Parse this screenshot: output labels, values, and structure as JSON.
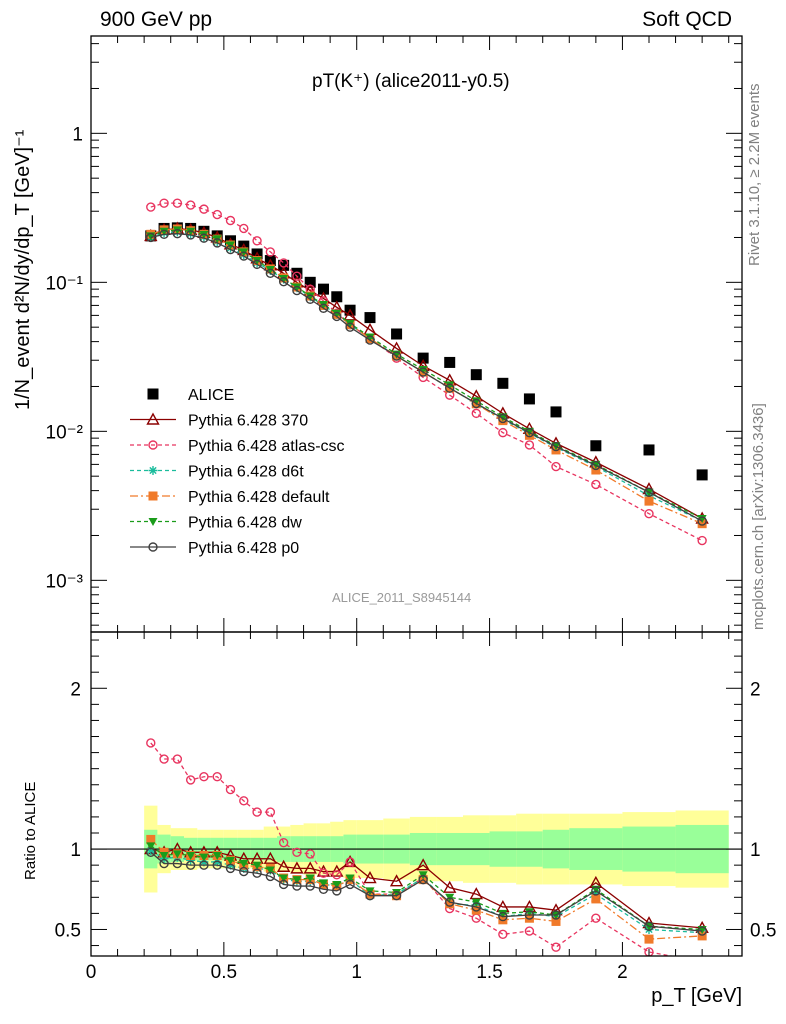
{
  "header": {
    "left": "900 GeV pp",
    "right": "Soft QCD"
  },
  "side_labels": {
    "rivet": "Rivet 3.1.10, ≥ 2.2M events",
    "mcplots": "mcplots.cern.ch [arXiv:1306.3436]"
  },
  "chart_data": [
    {
      "type": "scatter",
      "panel": "main",
      "title": "pT(K⁺) (alice2011-y0.5)",
      "watermark": "ALICE_2011_S8945144",
      "ylabel": "1/N_event d²N/dy/dp_T [GeV]⁻¹",
      "xlim": [
        0,
        2.45
      ],
      "ylim": [
        0.00045,
        4.5
      ],
      "yscale": "log",
      "yticks": [
        "10⁻³",
        "10⁻²",
        "10⁻¹",
        "1"
      ],
      "legend_position": "bottom-left",
      "x": [
        0.225,
        0.275,
        0.325,
        0.375,
        0.425,
        0.475,
        0.525,
        0.575,
        0.625,
        0.675,
        0.725,
        0.775,
        0.825,
        0.875,
        0.925,
        0.975,
        1.05,
        1.15,
        1.25,
        1.35,
        1.45,
        1.55,
        1.65,
        1.75,
        1.9,
        2.1,
        2.3
      ],
      "series": [
        {
          "name": "ALICE",
          "color": "#000000",
          "marker": "square",
          "dash": "none",
          "values": [
            0.205,
            0.23,
            0.232,
            0.23,
            0.22,
            0.205,
            0.19,
            0.175,
            0.155,
            0.14,
            0.13,
            0.115,
            0.1,
            0.09,
            0.08,
            0.065,
            0.058,
            0.045,
            0.031,
            0.029,
            0.024,
            0.021,
            0.0165,
            0.0135,
            0.008,
            0.0075,
            0.0051
          ]
        },
        {
          "name": "Pythia 6.428 370",
          "color": "#8b0000",
          "marker": "triangle-open",
          "dash": "none",
          "values": [
            0.205,
            0.225,
            0.23,
            0.225,
            0.215,
            0.2,
            0.18,
            0.165,
            0.145,
            0.13,
            0.115,
            0.1,
            0.088,
            0.078,
            0.068,
            0.06,
            0.048,
            0.036,
            0.0275,
            0.022,
            0.0172,
            0.0132,
            0.0104,
            0.0083,
            0.0062,
            0.0041,
            0.0026
          ]
        },
        {
          "name": "Pythia 6.428 atlas-csc",
          "color": "#e8345f",
          "marker": "circle-open",
          "dash": "4,3",
          "values": [
            0.32,
            0.34,
            0.34,
            0.33,
            0.31,
            0.285,
            0.26,
            0.23,
            0.19,
            0.16,
            0.135,
            0.11,
            0.09,
            0.075,
            0.062,
            0.052,
            0.042,
            0.031,
            0.023,
            0.0175,
            0.0132,
            0.0098,
            0.0081,
            0.0058,
            0.0044,
            0.0028,
            0.00185
          ]
        },
        {
          "name": "Pythia 6.428 d6t",
          "color": "#1abc9c",
          "marker": "asterisk",
          "dash": "4,3",
          "values": [
            0.2,
            0.215,
            0.218,
            0.212,
            0.202,
            0.188,
            0.17,
            0.153,
            0.135,
            0.12,
            0.105,
            0.092,
            0.08,
            0.07,
            0.061,
            0.052,
            0.042,
            0.032,
            0.025,
            0.0195,
            0.0153,
            0.012,
            0.0097,
            0.0078,
            0.0058,
            0.0037,
            0.0025
          ]
        },
        {
          "name": "Pythia 6.428 default",
          "color": "#f07a2a",
          "marker": "square",
          "dash": "8,3,2,3",
          "values": [
            0.21,
            0.225,
            0.228,
            0.222,
            0.21,
            0.195,
            0.178,
            0.16,
            0.14,
            0.123,
            0.107,
            0.093,
            0.081,
            0.07,
            0.061,
            0.052,
            0.042,
            0.032,
            0.025,
            0.0195,
            0.0153,
            0.0118,
            0.0094,
            0.0075,
            0.0055,
            0.0034,
            0.0024
          ]
        },
        {
          "name": "Pythia 6.428 dw",
          "color": "#1a9c1a",
          "marker": "triangle-down",
          "dash": "4,3",
          "values": [
            0.205,
            0.22,
            0.225,
            0.22,
            0.21,
            0.196,
            0.178,
            0.16,
            0.14,
            0.122,
            0.106,
            0.093,
            0.081,
            0.071,
            0.062,
            0.053,
            0.043,
            0.033,
            0.026,
            0.0205,
            0.016,
            0.0125,
            0.01,
            0.008,
            0.006,
            0.0039,
            0.0026
          ]
        },
        {
          "name": "Pythia 6.428 p0",
          "color": "#404040",
          "marker": "circle-open",
          "dash": "none",
          "values": [
            0.2,
            0.21,
            0.212,
            0.208,
            0.198,
            0.184,
            0.166,
            0.15,
            0.132,
            0.115,
            0.101,
            0.088,
            0.077,
            0.067,
            0.059,
            0.05,
            0.041,
            0.032,
            0.025,
            0.0195,
            0.0154,
            0.0122,
            0.0098,
            0.0079,
            0.0059,
            0.0039,
            0.0025
          ]
        }
      ]
    },
    {
      "type": "line",
      "panel": "ratio",
      "ylabel": "Ratio to ALICE",
      "xlabel": "p_T [GeV]",
      "xlim": [
        0,
        2.45
      ],
      "ylim": [
        0.335,
        2.35
      ],
      "xticks": [
        "0",
        "0.5",
        "1",
        "1.5",
        "2"
      ],
      "yticks": [
        "0.5",
        "1",
        "2"
      ],
      "x": [
        0.225,
        0.275,
        0.325,
        0.375,
        0.425,
        0.475,
        0.525,
        0.575,
        0.625,
        0.675,
        0.725,
        0.775,
        0.825,
        0.875,
        0.925,
        0.975,
        1.05,
        1.15,
        1.25,
        1.35,
        1.45,
        1.55,
        1.65,
        1.75,
        1.9,
        2.1,
        2.3
      ],
      "band_edges": [
        0.2,
        0.25,
        0.3,
        0.35,
        0.4,
        0.45,
        0.5,
        0.55,
        0.6,
        0.65,
        0.7,
        0.75,
        0.8,
        0.85,
        0.9,
        0.95,
        1.0,
        1.1,
        1.2,
        1.3,
        1.4,
        1.5,
        1.6,
        1.7,
        1.8,
        2.0,
        2.2,
        2.4
      ],
      "stat_band": [
        0.12,
        0.09,
        0.08,
        0.07,
        0.07,
        0.07,
        0.07,
        0.07,
        0.07,
        0.07,
        0.08,
        0.08,
        0.08,
        0.08,
        0.08,
        0.09,
        0.09,
        0.09,
        0.1,
        0.1,
        0.1,
        0.11,
        0.11,
        0.12,
        0.13,
        0.14,
        0.15
      ],
      "syst_band": [
        0.27,
        0.15,
        0.13,
        0.13,
        0.12,
        0.12,
        0.12,
        0.12,
        0.12,
        0.14,
        0.14,
        0.15,
        0.16,
        0.16,
        0.17,
        0.18,
        0.18,
        0.19,
        0.2,
        0.2,
        0.21,
        0.21,
        0.22,
        0.22,
        0.22,
        0.23,
        0.24
      ],
      "series": [
        {
          "name": "Pythia 6.428 370",
          "values": [
            1.0,
            0.98,
            1.0,
            0.98,
            0.98,
            0.98,
            0.96,
            0.94,
            0.94,
            0.94,
            0.89,
            0.88,
            0.88,
            0.86,
            0.86,
            0.92,
            0.82,
            0.8,
            0.9,
            0.76,
            0.72,
            0.64,
            0.64,
            0.62,
            0.79,
            0.54,
            0.51
          ]
        },
        {
          "name": "Pythia 6.428 atlas-csc",
          "values": [
            1.66,
            1.56,
            1.56,
            1.43,
            1.45,
            1.45,
            1.37,
            1.3,
            1.23,
            1.23,
            1.04,
            0.98,
            0.97,
            0.85,
            0.84,
            0.92,
            0.72,
            0.72,
            0.82,
            0.63,
            0.57,
            0.47,
            0.49,
            0.39,
            0.57,
            0.36,
            0.3
          ]
        },
        {
          "name": "Pythia 6.428 d6t",
          "values": [
            0.99,
            0.94,
            0.95,
            0.93,
            0.92,
            0.92,
            0.9,
            0.88,
            0.88,
            0.87,
            0.81,
            0.8,
            0.8,
            0.78,
            0.77,
            0.81,
            0.71,
            0.72,
            0.82,
            0.66,
            0.65,
            0.58,
            0.6,
            0.58,
            0.72,
            0.5,
            0.48
          ]
        },
        {
          "name": "Pythia 6.428 default",
          "values": [
            1.06,
            0.98,
            0.97,
            0.96,
            0.96,
            0.96,
            0.93,
            0.9,
            0.89,
            0.88,
            0.82,
            0.81,
            0.81,
            0.78,
            0.77,
            0.81,
            0.72,
            0.71,
            0.81,
            0.66,
            0.62,
            0.56,
            0.57,
            0.55,
            0.69,
            0.44,
            0.46
          ]
        },
        {
          "name": "Pythia 6.428 dw",
          "values": [
            1.02,
            0.96,
            0.97,
            0.96,
            0.95,
            0.96,
            0.93,
            0.91,
            0.9,
            0.87,
            0.82,
            0.81,
            0.82,
            0.79,
            0.78,
            0.82,
            0.74,
            0.73,
            0.84,
            0.7,
            0.67,
            0.6,
            0.61,
            0.59,
            0.75,
            0.52,
            0.5
          ]
        },
        {
          "name": "Pythia 6.428 p0",
          "values": [
            0.98,
            0.91,
            0.91,
            0.9,
            0.9,
            0.9,
            0.88,
            0.86,
            0.85,
            0.83,
            0.78,
            0.77,
            0.77,
            0.75,
            0.74,
            0.78,
            0.71,
            0.71,
            0.81,
            0.67,
            0.64,
            0.58,
            0.59,
            0.59,
            0.74,
            0.52,
            0.49
          ]
        }
      ]
    }
  ]
}
